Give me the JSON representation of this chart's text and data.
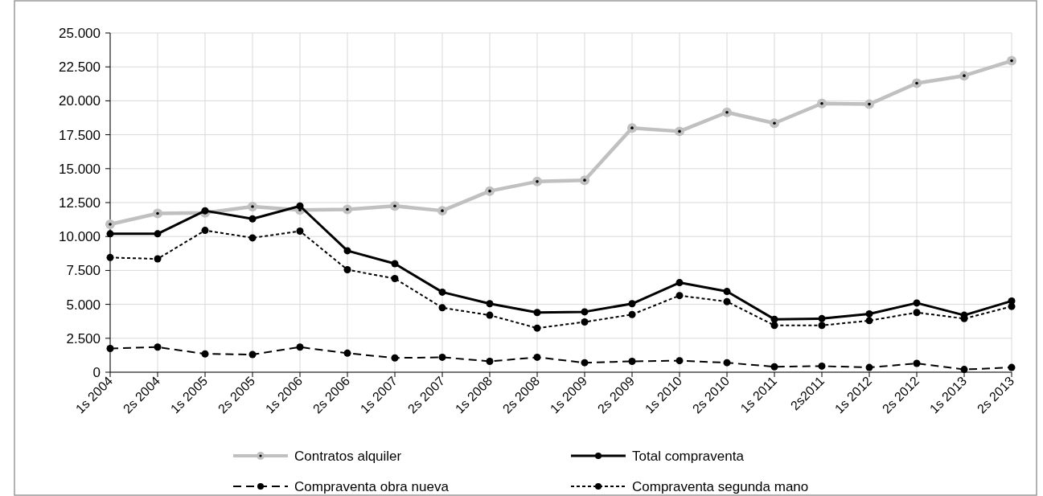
{
  "chart_data": {
    "type": "line",
    "categories": [
      "1s 2004",
      "2s 2004",
      "1s 2005",
      "2s 2005",
      "1s 2006",
      "2s 2006",
      "1s 2007",
      "2s 2007",
      "1s 2008",
      "2s 2008",
      "1s 2009",
      "2s 2009",
      "1s 2010",
      "2s 2010",
      "1s 2011",
      "2s2011",
      "1s 2012",
      "2s 2012",
      "1s 2013",
      "2s 2013"
    ],
    "series": [
      {
        "name": "Contratos alquiler",
        "color": "#c0c0c0",
        "line_style": "solid",
        "values": [
          10900,
          11700,
          11750,
          12200,
          11950,
          12000,
          12250,
          11900,
          13350,
          14050,
          14150,
          18000,
          17750,
          19150,
          18350,
          19800,
          19750,
          21300,
          21850,
          22950
        ]
      },
      {
        "name": "Total compraventa",
        "color": "#000000",
        "line_style": "solid",
        "values": [
          10200,
          10200,
          11900,
          11300,
          12250,
          8950,
          8000,
          5900,
          5050,
          4400,
          4450,
          5050,
          6600,
          5950,
          3900,
          3950,
          4300,
          5100,
          4200,
          5250
        ]
      },
      {
        "name": "Compraventa obra nueva",
        "color": "#000000",
        "line_style": "dashed",
        "values": [
          1750,
          1850,
          1350,
          1300,
          1850,
          1400,
          1050,
          1100,
          800,
          1100,
          700,
          800,
          850,
          700,
          400,
          450,
          350,
          650,
          200,
          350
        ]
      },
      {
        "name": "Compraventa segunda mano",
        "color": "#000000",
        "line_style": "dotted",
        "values": [
          8450,
          8350,
          10450,
          9900,
          10400,
          7550,
          6900,
          4750,
          4200,
          3250,
          3700,
          4250,
          5650,
          5200,
          3450,
          3450,
          3800,
          4400,
          3950,
          4850
        ]
      }
    ],
    "ylim": [
      0,
      25000
    ],
    "yticks": [
      {
        "value": 0,
        "label": "0"
      },
      {
        "value": 2500,
        "label": "2.500"
      },
      {
        "value": 5000,
        "label": "5.000"
      },
      {
        "value": 7500,
        "label": "7.500"
      },
      {
        "value": 10000,
        "label": "10.000"
      },
      {
        "value": 12500,
        "label": "12.500"
      },
      {
        "value": 15000,
        "label": "15.000"
      },
      {
        "value": 17500,
        "label": "17.500"
      },
      {
        "value": 20000,
        "label": "20.000"
      },
      {
        "value": 22500,
        "label": "22.500"
      },
      {
        "value": 25000,
        "label": "25.000"
      }
    ],
    "grid": true,
    "legend": "bottom",
    "marker": "circle"
  }
}
